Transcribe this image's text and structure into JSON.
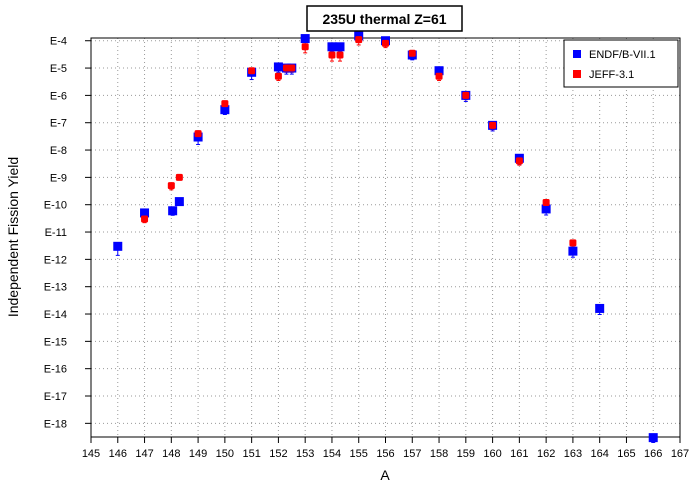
{
  "chart_data": {
    "type": "scatter",
    "title": "235U thermal Z=61",
    "xlabel": "A",
    "ylabel": "Independent Fission Yield",
    "xlim": [
      145,
      167
    ],
    "ylim_exp": [
      -18.5,
      -3.9
    ],
    "y_scale": "log",
    "grid": true,
    "legend_position": "top-right",
    "x_ticks": [
      "145",
      "146",
      "147",
      "148",
      "149",
      "150",
      "151",
      "152",
      "153",
      "154",
      "155",
      "156",
      "157",
      "158",
      "159",
      "160",
      "161",
      "162",
      "163",
      "164",
      "165",
      "166",
      "167"
    ],
    "y_ticks": [
      "E-4",
      "E-5",
      "E-6",
      "E-7",
      "E-8",
      "E-9",
      "E-10",
      "E-11",
      "E-12",
      "E-13",
      "E-14",
      "E-15",
      "E-16",
      "E-17",
      "E-18"
    ],
    "series": [
      {
        "name": "ENDF/B-VII.1",
        "color": "#0000ff",
        "points": [
          {
            "x": 146,
            "y": "3.0e-12",
            "err_lo": "1.6e-12"
          },
          {
            "x": 147,
            "y": "5.0e-11",
            "err_lo": "1.0e-11"
          },
          {
            "x": 148.05,
            "y": "6.0e-11",
            "err_lo": "1.9e-11"
          },
          {
            "x": 148.3,
            "y": "1.3e-10",
            "err_lo": "3.5e-11"
          },
          {
            "x": 149,
            "y": "3.0e-8",
            "err_lo": "1.4e-8"
          },
          {
            "x": 150,
            "y": "3.0e-7",
            "err_lo": "1.0e-7"
          },
          {
            "x": 151,
            "y": "7.0e-6",
            "err_lo": "3.2e-6"
          },
          {
            "x": 152,
            "y": "1.1e-5",
            "err_lo": "4.0e-6"
          },
          {
            "x": 152.3,
            "y": "1.0e-5",
            "err_lo": "4.0e-6"
          },
          {
            "x": 152.5,
            "y": "1.0e-5",
            "err_lo": "4.0e-6"
          },
          {
            "x": 153,
            "y": "1.2e-4",
            "err_lo": "6.0e-5"
          },
          {
            "x": 154,
            "y": "6.0e-5",
            "err_lo": "2.0e-5"
          },
          {
            "x": 154.3,
            "y": "6.0e-5",
            "err_lo": "2.0e-5"
          },
          {
            "x": 155,
            "y": "1.5e-4",
            "err_lo": "5.6e-5"
          },
          {
            "x": 156,
            "y": "1.0e-4",
            "err_lo": "3.2e-5"
          },
          {
            "x": 157,
            "y": "3.0e-5",
            "err_lo": "1.0e-5"
          },
          {
            "x": 158,
            "y": "8.0e-6",
            "err_lo": "3.2e-6"
          },
          {
            "x": 159,
            "y": "1.0e-6",
            "err_lo": "4.0e-7"
          },
          {
            "x": 160,
            "y": "8.0e-8",
            "err_lo": "3.0e-8"
          },
          {
            "x": 161,
            "y": "5.0e-9",
            "err_lo": "2.0e-9"
          },
          {
            "x": 162,
            "y": "7.0e-11",
            "err_lo": "2.8e-11"
          },
          {
            "x": 163,
            "y": "2.0e-12",
            "err_lo": "8.0e-13"
          },
          {
            "x": 164,
            "y": "1.6e-14",
            "err_lo": "6.4e-15"
          },
          {
            "x": 166,
            "y": "3.0e-19",
            "err_lo": "1.0e-19"
          }
        ]
      },
      {
        "name": "JEFF-3.1",
        "color": "#ff0000",
        "points": [
          {
            "x": 147,
            "y": "3.0e-11",
            "err_lo": "8.0e-12"
          },
          {
            "x": 148,
            "y": "5.0e-10",
            "err_lo": "1.5e-10"
          },
          {
            "x": 148.3,
            "y": "1.0e-9",
            "err_lo": "2.0e-10"
          },
          {
            "x": 149,
            "y": "4.0e-8",
            "err_lo": "8.0e-9"
          },
          {
            "x": 150,
            "y": "5.0e-7",
            "err_lo": "1.0e-7"
          },
          {
            "x": 151,
            "y": "8.0e-6",
            "err_lo": "1.6e-6"
          },
          {
            "x": 152,
            "y": "5.0e-6",
            "err_lo": "1.5e-6"
          },
          {
            "x": 152.3,
            "y": "1.0e-5",
            "err_lo": "3.0e-6"
          },
          {
            "x": 152.5,
            "y": "1.0e-5",
            "err_lo": "3.0e-6"
          },
          {
            "x": 153,
            "y": "6.0e-5",
            "err_lo": "2.4e-5"
          },
          {
            "x": 154,
            "y": "3.0e-5",
            "err_lo": "1.2e-5"
          },
          {
            "x": 154.3,
            "y": "3.0e-5",
            "err_lo": "1.2e-5"
          },
          {
            "x": 155,
            "y": "1.1e-4",
            "err_lo": "4.0e-5"
          },
          {
            "x": 156,
            "y": "8.0e-5",
            "err_lo": "2.4e-5"
          },
          {
            "x": 157,
            "y": "3.5e-5",
            "err_lo": "1.0e-5"
          },
          {
            "x": 158,
            "y": "5.0e-6",
            "err_lo": "1.5e-6"
          },
          {
            "x": 159,
            "y": "1.0e-6",
            "err_lo": "3.0e-7"
          },
          {
            "x": 160,
            "y": "8.0e-8",
            "err_lo": "2.4e-8"
          },
          {
            "x": 161,
            "y": "4.0e-9",
            "err_lo": "1.2e-9"
          },
          {
            "x": 162,
            "y": "1.2e-10",
            "err_lo": "3.6e-11"
          },
          {
            "x": 163,
            "y": "4.0e-12",
            "err_lo": "1.2e-12"
          }
        ]
      }
    ]
  }
}
